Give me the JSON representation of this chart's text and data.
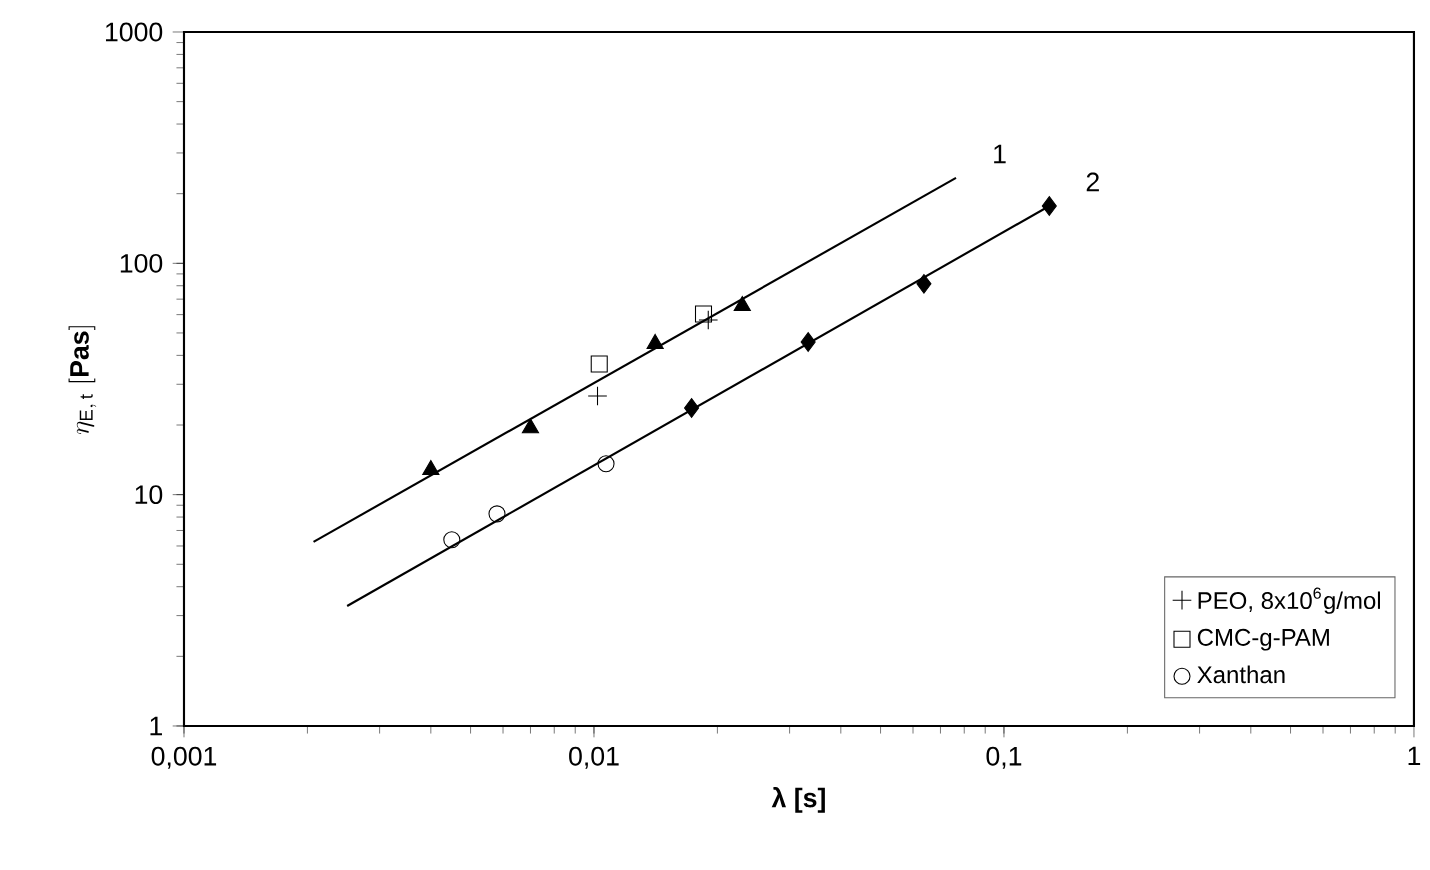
{
  "chart_data": {
    "type": "scatter",
    "xlabel": "**λ [s]**",
    "ylabel": "\\eta_{\\mathrm{E},\\,\\mathrm{t}}\\ \\mathbf{[Pas]}",
    "log": "xy",
    "grid": false,
    "legend": "bottom right",
    "xlim": [
      0.001,
      1
    ],
    "ylim": [
      1,
      1000
    ],
    "xticks": [
      {
        "value": 0.001,
        "label": "0,001"
      },
      {
        "value": 0.01,
        "label": "0,01"
      },
      {
        "value": 0.1,
        "label": "0,1"
      },
      1
    ],
    "yticks": [
      1,
      10,
      100,
      1000
    ],
    "series": [
      {
        "color": "#000000",
        "marker": "triangle",
        "x": [
          0.004,
          0.007,
          0.0141,
          0.023
        ],
        "values": [
          12.8,
          19.4,
          44.9,
          65.5
        ]
      },
      {
        "name": "PEO, 8x10$^{6}$g/mol",
        "color": "#000000",
        "marker": "cross",
        "x": [
          0.0102,
          0.019
        ],
        "values": [
          26.7,
          56.9
        ]
      },
      {
        "name": "CMC-g-PAM",
        "color": "#000000",
        "marker": "square",
        "x": [
          0.0103,
          0.0185
        ],
        "values": [
          36.7,
          60.4
        ]
      },
      {
        "color": "#000000",
        "marker": "diamond",
        "x": [
          0.0173,
          0.0333,
          0.0638,
          0.129
        ],
        "values": [
          23.7,
          45.7,
          81.5,
          177
        ]
      },
      {
        "name": "Xanthan",
        "color": "#000000",
        "marker": "circle",
        "x": [
          0.0045,
          0.0058,
          0.0107
        ],
        "values": [
          6.38,
          8.26,
          13.6
        ]
      },
      {
        "type": "line",
        "color": "#000000",
        "marker": "none",
        "x": [
          0.00207,
          0.0764
        ],
        "values": [
          6.25,
          234
        ]
      },
      {
        "type": "line",
        "color": "#000000",
        "marker": "none",
        "x": [
          0.0025,
          0.129
        ],
        "values": [
          3.3,
          177
        ]
      }
    ],
    "annotations": [
      "1",
      "2"
    ]
  }
}
